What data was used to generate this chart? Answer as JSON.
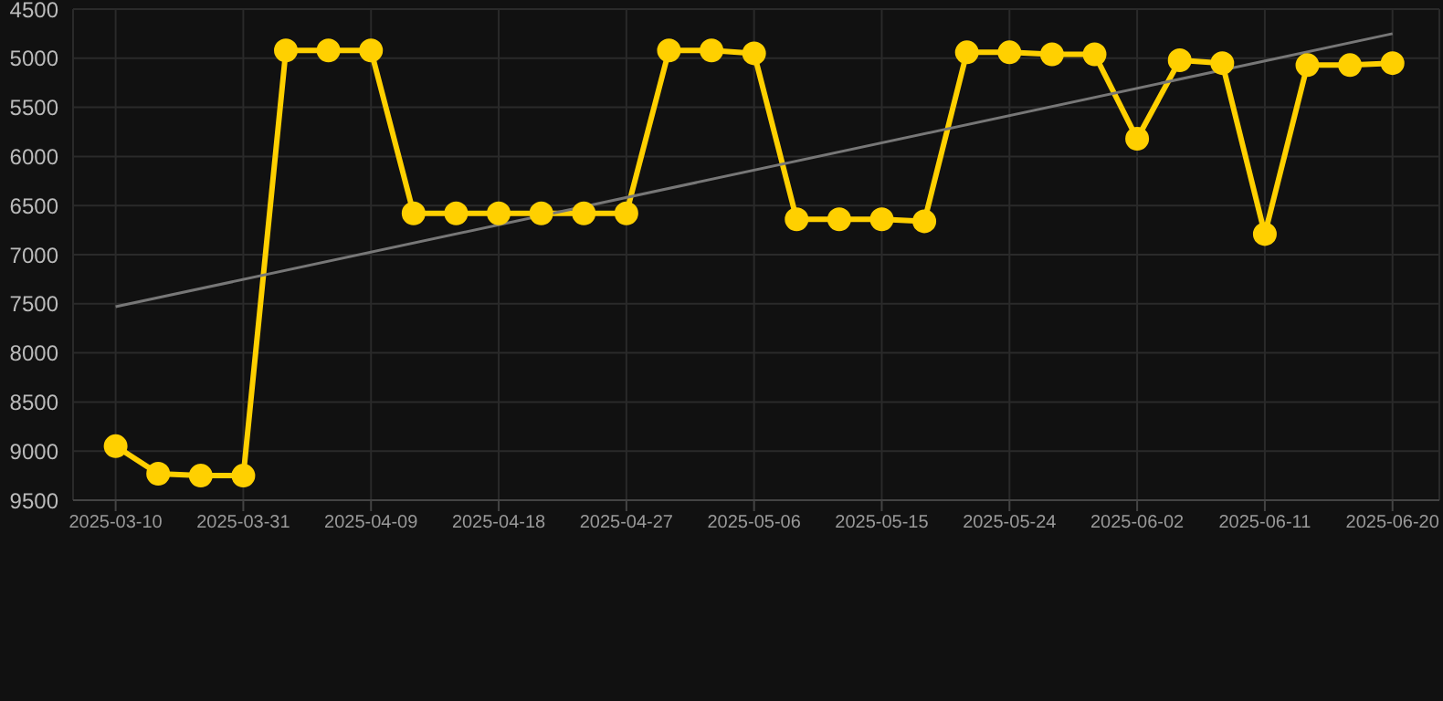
{
  "chart_data": {
    "type": "line",
    "ylim": [
      9500,
      4500
    ],
    "yticks": [
      4500,
      5000,
      5500,
      6000,
      6500,
      7000,
      7500,
      8000,
      8500,
      9000,
      9500
    ],
    "grid": true,
    "marker": "circle",
    "line_style": "solid",
    "categories": [
      "2025-03-10",
      null,
      null,
      "2025-03-31",
      null,
      null,
      "2025-04-09",
      null,
      null,
      "2025-04-18",
      null,
      null,
      "2025-04-27",
      null,
      null,
      "2025-05-06",
      null,
      null,
      "2025-05-15",
      null,
      null,
      "2025-05-24",
      null,
      null,
      "2025-06-02",
      null,
      null,
      "2025-06-11",
      null,
      null,
      "2025-06-20"
    ],
    "series": [
      {
        "color": "#ffd000",
        "values": [
          8950,
          9230,
          9250,
          9250,
          4920,
          4920,
          4920,
          6580,
          6580,
          6580,
          6580,
          6580,
          6580,
          4920,
          4920,
          4950,
          6640,
          6640,
          6640,
          6660,
          4940,
          4940,
          4960,
          4960,
          5820,
          5020,
          5050,
          6790,
          5070,
          5070,
          5050
        ]
      },
      {
        "type": "line",
        "color": "#777777",
        "marker": "none",
        "values": [
          7530,
          null,
          null,
          null,
          null,
          null,
          null,
          null,
          null,
          null,
          null,
          null,
          null,
          null,
          null,
          null,
          null,
          null,
          null,
          null,
          null,
          null,
          null,
          null,
          null,
          null,
          null,
          null,
          null,
          null,
          4750
        ]
      }
    ]
  }
}
